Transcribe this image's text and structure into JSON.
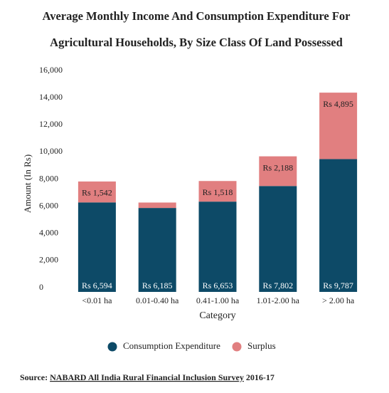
{
  "chart_data": {
    "type": "stacked_bar",
    "title": [
      "Average Monthly Income And Consumption Expenditure For",
      "Agricultural Households, By Size Class Of Land Possessed"
    ],
    "x_label": "Category",
    "y_label": "Amount (In Rs)",
    "categories": [
      "<0.01 ha",
      "0.01-0.40 ha",
      "0.41-1.00 ha",
      "1.01-2.00 ha",
      "> 2.00 ha"
    ],
    "series": [
      {
        "name": "Consumption Expenditure",
        "color": "#0d4a67",
        "values": [
          6594,
          6185,
          6653,
          7802,
          9787
        ],
        "value_labels": [
          "Rs 6,594",
          "Rs 6,185",
          "Rs 6,653",
          "Rs 7,802",
          "Rs 9,787"
        ]
      },
      {
        "name": "Surplus",
        "color": "#e17f80",
        "values": [
          1542,
          400,
          1518,
          2188,
          4895
        ],
        "value_labels": [
          "Rs 1,542",
          null,
          "Rs 1,518",
          "Rs 2,188",
          "Rs 4,895"
        ]
      }
    ],
    "ylim": [
      0,
      16000
    ],
    "yticks": [
      0,
      {
        "value": 2000,
        "label": "2,000"
      },
      {
        "value": 4000,
        "label": "4,000"
      },
      {
        "value": 6000,
        "label": "6,000"
      },
      {
        "value": 8000,
        "label": "8,000"
      },
      {
        "value": 10000,
        "label": "10,000"
      },
      {
        "value": 12000,
        "label": "12,000"
      },
      {
        "value": 14000,
        "label": "14,000"
      },
      {
        "value": 16000,
        "label": "16,000"
      }
    ],
    "grid": false,
    "legend": "bottom"
  },
  "source": {
    "label": "Source:",
    "link": "NABARD All India Rural Financial Inclusion Survey",
    "rest": "2016-17"
  }
}
